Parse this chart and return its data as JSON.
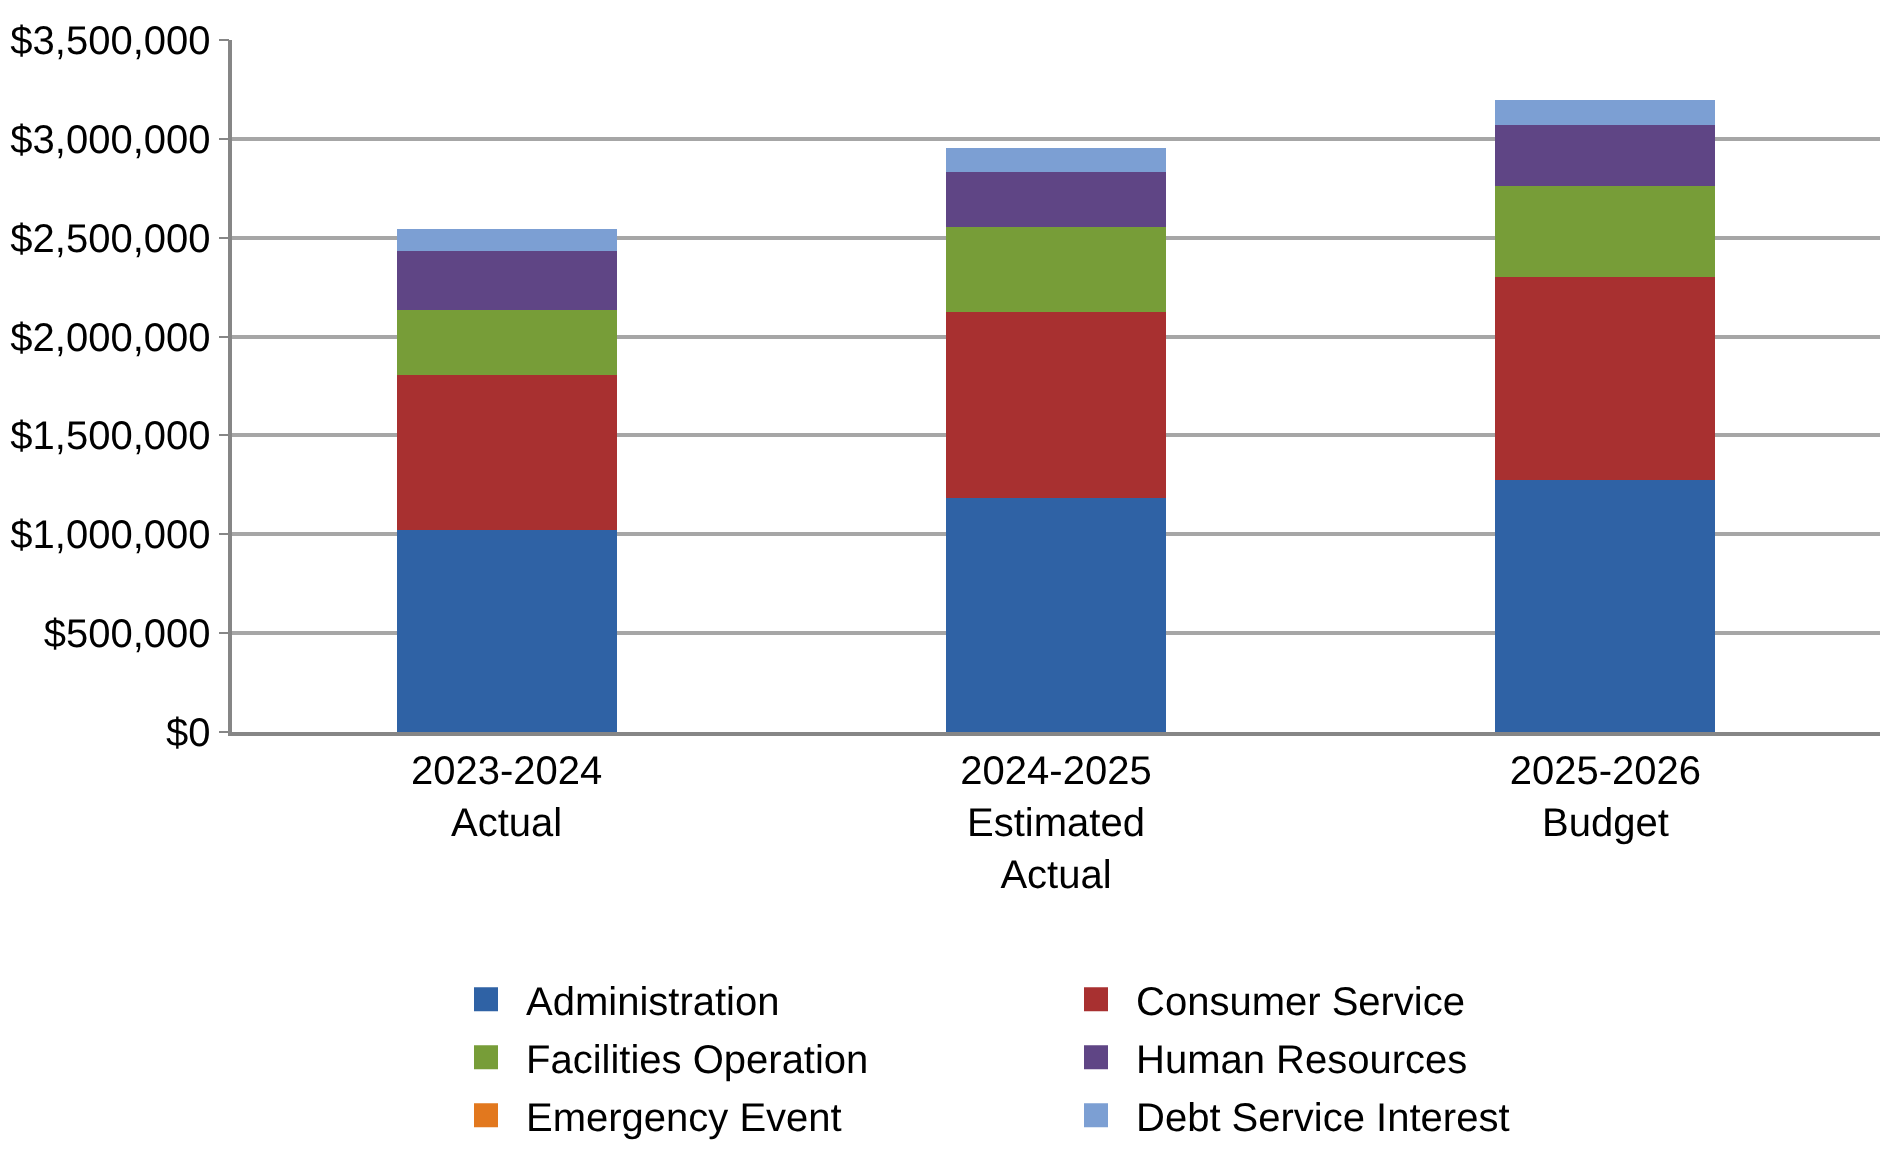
{
  "chart_data": {
    "type": "bar",
    "stacked": true,
    "categories": [
      "2023-2024 Actual",
      "2024-2025 Estimated Actual",
      "2025-2026 Budget"
    ],
    "series": [
      {
        "name": "Administration",
        "color": "#2f62a5",
        "values": [
          1020000,
          1185000,
          1275000
        ]
      },
      {
        "name": "Consumer Service",
        "color": "#a83030",
        "values": [
          785000,
          940000,
          1025000
        ]
      },
      {
        "name": "Facilities Operation",
        "color": "#779d38",
        "values": [
          330000,
          430000,
          460000
        ]
      },
      {
        "name": "Human Resources",
        "color": "#5f4585",
        "values": [
          300000,
          275000,
          310000
        ]
      },
      {
        "name": "Emergency Event",
        "color": "#e2781e",
        "values": [
          0,
          0,
          0
        ]
      },
      {
        "name": "Debt Service Interest",
        "color": "#7c9fd3",
        "values": [
          110000,
          125000,
          125000
        ]
      }
    ],
    "ylim": [
      0,
      3500000
    ],
    "yticks": [
      {
        "value": 0,
        "label": "$0"
      },
      {
        "value": 500000,
        "label": "$500,000"
      },
      {
        "value": 1000000,
        "label": "$1,000,000"
      },
      {
        "value": 1500000,
        "label": "$1,500,000"
      },
      {
        "value": 2000000,
        "label": "$2,000,000"
      },
      {
        "value": 2500000,
        "label": "$2,500,000"
      },
      {
        "value": 3000000,
        "label": "$3,000,000"
      },
      {
        "value": 3500000,
        "label": "$3,500,000"
      }
    ],
    "grid": "y",
    "legend": "bottom"
  }
}
